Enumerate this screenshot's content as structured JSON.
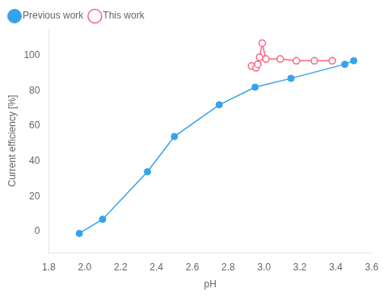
{
  "chart_data": {
    "type": "line",
    "xlabel": "pH",
    "ylabel": "Current efficiency [%]",
    "series": [
      {
        "name": "Previous work",
        "marker": "circle",
        "x": [
          1.97,
          2.1,
          2.35,
          2.5,
          2.75,
          2.95,
          3.15,
          3.45,
          3.5
        ],
        "values": [
          -1,
          7,
          34,
          54,
          72,
          82,
          87,
          95,
          97
        ]
      },
      {
        "name": "This work",
        "marker": "open_circle",
        "x": [
          2.93,
          2.955,
          2.965,
          2.975,
          2.99,
          3.01,
          3.09,
          3.18,
          3.28,
          3.38
        ],
        "values": [
          94,
          93,
          95,
          99,
          107,
          98,
          98,
          97,
          97,
          97
        ]
      }
    ],
    "xlim": [
      1.8,
      3.6
    ],
    "ylim": [
      -12,
      115
    ],
    "xticks": [
      1.8,
      {
        "value": 2.0,
        "label": "2.0"
      },
      2.2,
      2.4,
      2.6,
      2.8,
      {
        "value": 3.0,
        "label": "3.0"
      },
      3.2,
      3.4,
      3.6
    ],
    "yticks": [
      0,
      20,
      40,
      60,
      80,
      100
    ],
    "grid": false,
    "legend": "upper left"
  }
}
